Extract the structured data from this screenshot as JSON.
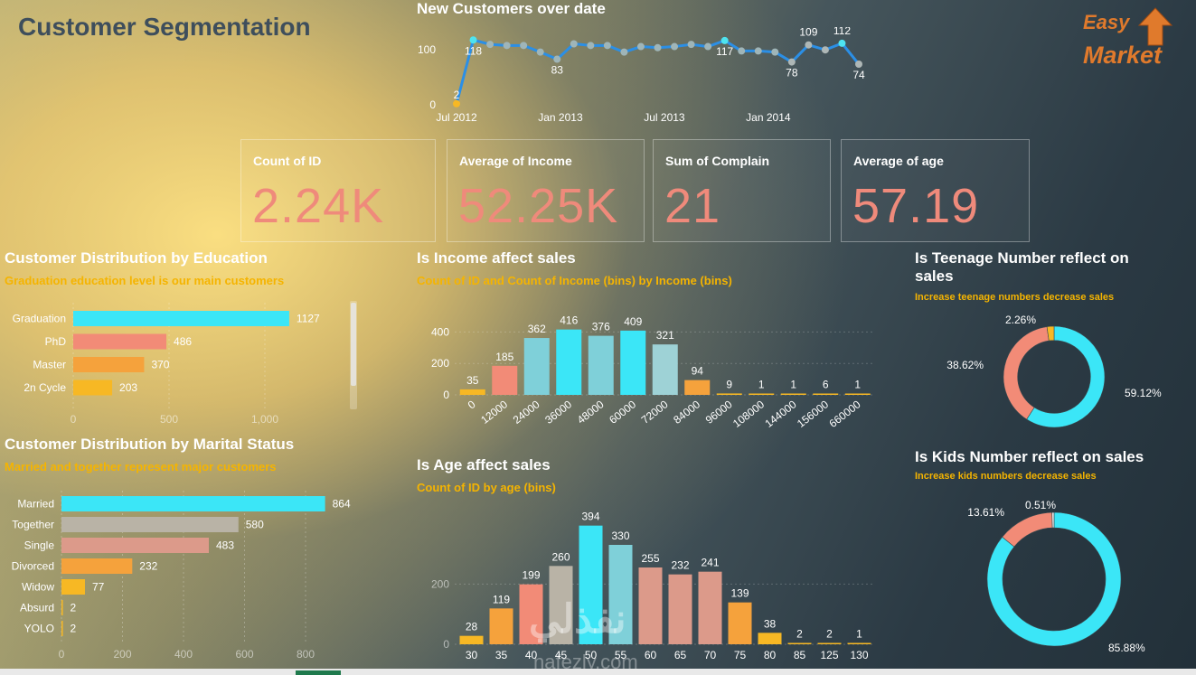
{
  "page": {
    "title": "Customer Segmentation"
  },
  "logo": {
    "line1": "Easy",
    "line2": "Market"
  },
  "watermark": {
    "text": "nafezly.com",
    "arabic": "نفذلي"
  },
  "colors": {
    "cyan": "#3be6f7",
    "salmon": "#f28b77",
    "orange": "#f5a23c",
    "amber": "#f7b824",
    "gray": "#b9b3a6",
    "rose": "#dc9a8a",
    "teal": "#7fd0d9",
    "kpi_value": "#ef8a7b",
    "subtitle": "#f5b400"
  },
  "kpis": [
    {
      "label": "Count of ID",
      "value": "2.24K"
    },
    {
      "label": "Average of Income",
      "value": "52.25K"
    },
    {
      "label": "Sum of Complain",
      "value": "21"
    },
    {
      "label": "Average of age",
      "value": "57.19"
    }
  ],
  "chart_data": [
    {
      "id": "new_customers",
      "type": "line",
      "title": "New Customers over date",
      "x_ticks": [
        "Jul 2012",
        "Jan 2013",
        "Jul 2013",
        "Jan 2014"
      ],
      "y_ticks": [
        "0",
        "100"
      ],
      "ylim": [
        0,
        125
      ],
      "values": [
        2,
        118,
        110,
        108,
        108,
        96,
        83,
        111,
        108,
        108,
        96,
        106,
        104,
        106,
        110,
        106,
        117,
        98,
        98,
        96,
        78,
        109,
        100,
        112,
        74
      ],
      "labels": {
        "0": "2",
        "1": "118",
        "6": "83",
        "16": "117",
        "20": "78",
        "21": "109",
        "23": "112",
        "24": "74"
      }
    },
    {
      "id": "education",
      "type": "bar",
      "orientation": "horizontal",
      "title": "Customer Distribution by Education",
      "subtitle": "Graduation education level is our main customers",
      "categories": [
        "Graduation",
        "PhD",
        "Master",
        "2n Cycle"
      ],
      "values": [
        1127,
        486,
        370,
        203
      ],
      "x_ticks": [
        "0",
        "500",
        "1,000"
      ],
      "xlim": [
        0,
        1250
      ]
    },
    {
      "id": "marital",
      "type": "bar",
      "orientation": "horizontal",
      "title": "Customer Distribution by Marital Status",
      "subtitle": "Married and together represent major customers",
      "categories": [
        "Married",
        "Together",
        "Single",
        "Divorced",
        "Widow",
        "Absurd",
        "YOLO"
      ],
      "values": [
        864,
        580,
        483,
        232,
        77,
        2,
        2
      ],
      "x_ticks": [
        "0",
        "200",
        "400",
        "600",
        "800"
      ],
      "xlim": [
        0,
        880
      ]
    },
    {
      "id": "income",
      "type": "bar",
      "title": "Is Income affect sales",
      "subtitle": "Count of ID and Count of Income  (bins) by Income  (bins)",
      "categories": [
        "0",
        "12000",
        "24000",
        "36000",
        "48000",
        "60000",
        "72000",
        "84000",
        "96000",
        "108000",
        "144000",
        "156000",
        "660000"
      ],
      "values": [
        35,
        185,
        362,
        416,
        376,
        409,
        321,
        94,
        9,
        1,
        1,
        6,
        1
      ],
      "y_ticks": [
        "0",
        "200",
        "400"
      ],
      "ylim": [
        0,
        460
      ]
    },
    {
      "id": "age",
      "type": "bar",
      "title": "Is Age affect sales",
      "subtitle": "Count of ID by age (bins)",
      "categories": [
        "30",
        "35",
        "40",
        "45",
        "50",
        "55",
        "60",
        "65",
        "70",
        "75",
        "80",
        "85",
        "125",
        "130"
      ],
      "values": [
        28,
        119,
        199,
        260,
        394,
        330,
        255,
        232,
        241,
        139,
        38,
        2,
        2,
        1
      ],
      "y_ticks": [
        "0",
        "200"
      ],
      "ylim": [
        0,
        420
      ]
    },
    {
      "id": "teen",
      "type": "pie",
      "title": "Is Teenage Number reflect on sales",
      "subtitle": "Increase teenage numbers decrease sales",
      "slices": [
        {
          "label": "59.12%",
          "value": 59.12
        },
        {
          "label": "38.62%",
          "value": 38.62
        },
        {
          "label": "2.26%",
          "value": 2.26
        }
      ]
    },
    {
      "id": "kids",
      "type": "pie",
      "title": "Is Kids Number reflect on sales",
      "subtitle": "Increase kids numbers decrease sales",
      "slices": [
        {
          "label": "85.88%",
          "value": 85.88
        },
        {
          "label": "13.61%",
          "value": 13.61
        },
        {
          "label": "0.51%",
          "value": 0.51
        }
      ]
    }
  ]
}
